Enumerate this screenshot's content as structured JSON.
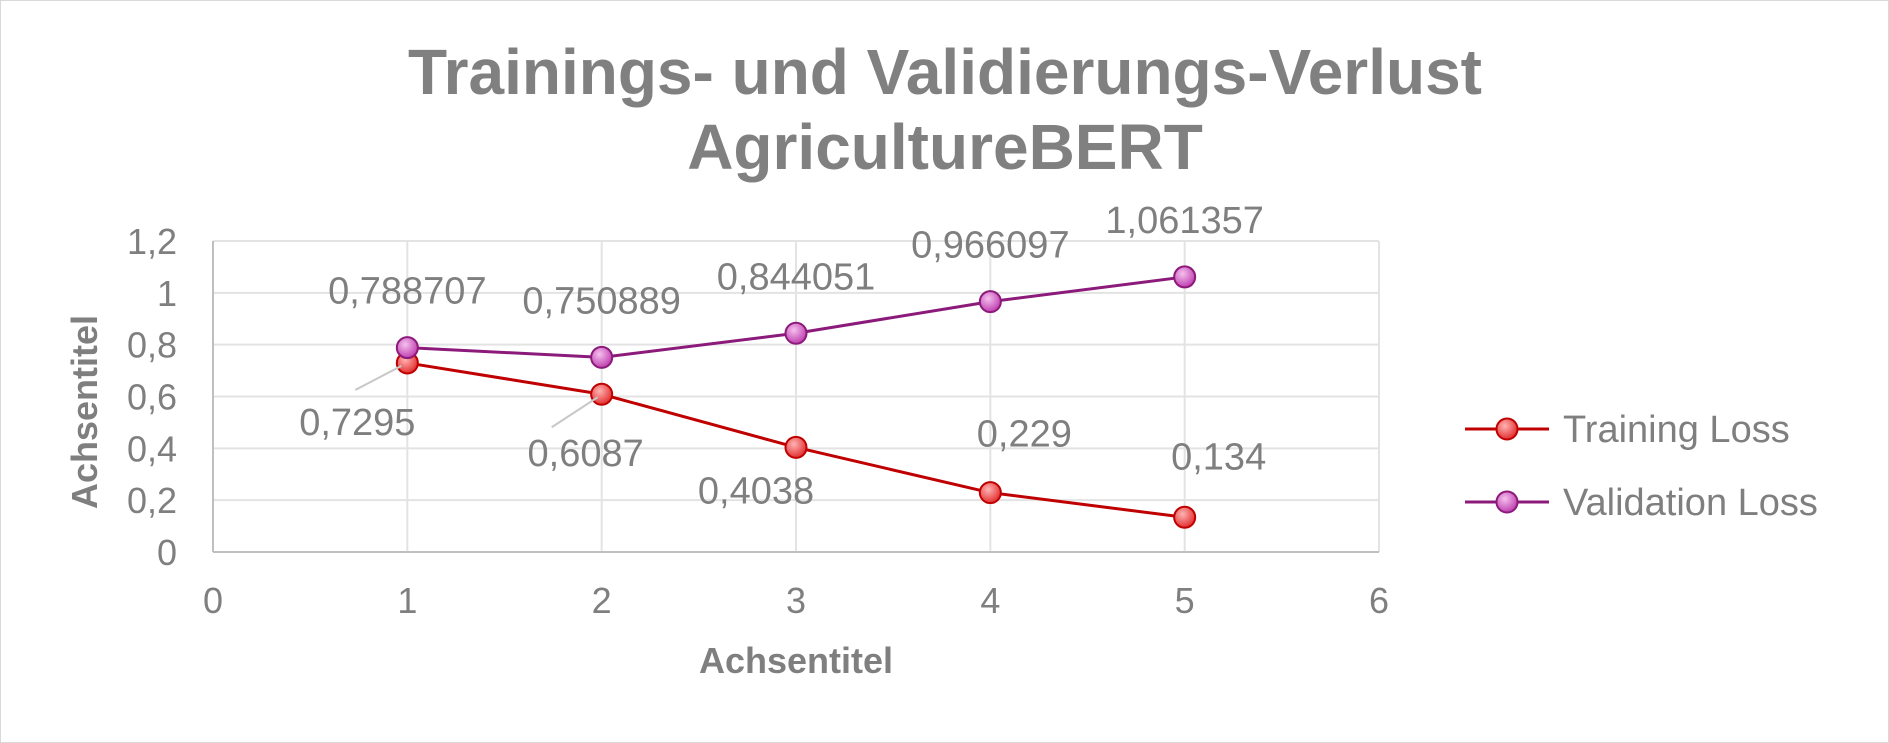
{
  "chart_data": {
    "type": "scatter",
    "title": [
      "Trainings- und Validierungs-Verlust",
      "AgricultureBERT"
    ],
    "xlabel": "Achsentitel",
    "ylabel": "Achsentitel",
    "xlim": [
      0,
      6
    ],
    "ylim": [
      0,
      1.2
    ],
    "x_ticks": [
      0,
      1,
      2,
      3,
      4,
      5,
      6
    ],
    "x_tick_labels": [
      "0",
      "1",
      "2",
      "3",
      "4",
      "5",
      "6"
    ],
    "y_ticks": [
      0,
      0.2,
      0.4,
      0.6,
      0.8,
      1,
      1.2
    ],
    "y_tick_labels": [
      "0",
      "0,2",
      "0,4",
      "0,6",
      "0,8",
      "1",
      "1,2"
    ],
    "grid": true,
    "legend_position": "right",
    "series": [
      {
        "name": "Training Loss",
        "color": "#c00000",
        "marker_fill": "#ff5a5a",
        "x": [
          1,
          2,
          3,
          4,
          5
        ],
        "y": [
          0.7295,
          0.6087,
          0.4038,
          0.229,
          0.134
        ],
        "labels": [
          "0,7295",
          "0,6087",
          "0,4038",
          "0,229",
          "0,134"
        ]
      },
      {
        "name": "Validation Loss",
        "color": "#8b1a7a",
        "marker_fill": "#d85fc8",
        "x": [
          1,
          2,
          3,
          4,
          5
        ],
        "y": [
          0.788707,
          0.750889,
          0.844051,
          0.966097,
          1.061357
        ],
        "labels": [
          "0,788707",
          "0,750889",
          "0,844051",
          "0,966097",
          "1,061357"
        ]
      }
    ]
  }
}
